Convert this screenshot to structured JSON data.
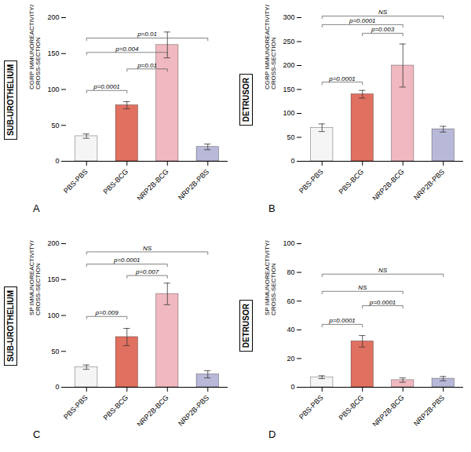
{
  "chart_data": [
    {
      "type": "bar",
      "title": "SUB-UROTHELIUM",
      "panel_label": "A",
      "ylabel": "CGRP IMMUNOREACTIVITY/\nCROSS-SECTION",
      "categories": [
        "PBS-PBS",
        "PBS-BCG",
        "NRP2B-BCG",
        "NRP2B-PBS"
      ],
      "values": [
        35,
        78,
        162,
        20
      ],
      "errors": [
        3,
        5,
        18,
        4
      ],
      "colors": [
        "#f5f5f5",
        "#e07060",
        "#f0b8c0",
        "#b8b8d8"
      ],
      "ylim": [
        0,
        200
      ],
      "yticks": [
        0,
        50,
        100,
        150,
        200
      ],
      "annotations": [
        {
          "x1": "PBS-PBS",
          "x2": "PBS-BCG",
          "y": 95,
          "text": "p=0.0001"
        },
        {
          "x1": "PBS-BCG",
          "x2": "NRP2B-BCG",
          "y": 125,
          "text": "p=0.01"
        },
        {
          "x1": "PBS-PBS",
          "x2": "NRP2B-BCG",
          "y": 148,
          "text": "p=0.004"
        },
        {
          "x1": "PBS-PBS",
          "x2": "NRP2B-PBS",
          "y": 168,
          "text": "p=0.01"
        }
      ]
    },
    {
      "type": "bar",
      "title": "DETRUSOR",
      "panel_label": "B",
      "ylabel": "CGRP IMMUNOREACTIVITY/\nCROSS-SECTION",
      "categories": [
        "PBS-PBS",
        "PBS-BCG",
        "NRP2B-BCG",
        "NRP2B-PBS"
      ],
      "values": [
        70,
        140,
        200,
        67
      ],
      "errors": [
        8,
        8,
        45,
        6
      ],
      "colors": [
        "#f5f5f5",
        "#e07060",
        "#f0b8c0",
        "#b8b8d8"
      ],
      "ylim": [
        0,
        300
      ],
      "yticks": [
        0,
        50,
        100,
        150,
        200,
        250,
        300
      ],
      "annotations": [
        {
          "x1": "PBS-PBS",
          "x2": "PBS-BCG",
          "y": 160,
          "text": "p=0.0001"
        },
        {
          "x1": "PBS-BCG",
          "x2": "NRP2B-BCG",
          "y": 262,
          "text": "p=0.003"
        },
        {
          "x1": "PBS-PBS",
          "x2": "NRP2B-BCG",
          "y": 280,
          "text": "p=0.0001"
        },
        {
          "x1": "PBS-PBS",
          "x2": "NRP2B-PBS",
          "y": 298,
          "text": "NS"
        }
      ]
    },
    {
      "type": "bar",
      "title": "SUB-UROTHELIUM",
      "panel_label": "C",
      "ylabel": "SP IMMUNOREACTIVITY/\nCROSS-SECTION",
      "categories": [
        "PBS-PBS",
        "PBS-BCG",
        "NRP2B-BCG",
        "NRP2B-PBS"
      ],
      "values": [
        28,
        70,
        130,
        18
      ],
      "errors": [
        3,
        12,
        15,
        5
      ],
      "colors": [
        "#f5f5f5",
        "#e07060",
        "#f0b8c0",
        "#b8b8d8"
      ],
      "ylim": [
        0,
        200
      ],
      "yticks": [
        0,
        50,
        100,
        150,
        200
      ],
      "annotations": [
        {
          "x1": "PBS-PBS",
          "x2": "PBS-BCG",
          "y": 95,
          "text": "p=0.009"
        },
        {
          "x1": "PBS-BCG",
          "x2": "NRP2B-BCG",
          "y": 152,
          "text": "p=0.007"
        },
        {
          "x1": "PBS-PBS",
          "x2": "NRP2B-BCG",
          "y": 168,
          "text": "p=0.0001"
        },
        {
          "x1": "PBS-PBS",
          "x2": "NRP2B-PBS",
          "y": 185,
          "text": "NS"
        }
      ]
    },
    {
      "type": "bar",
      "title": "DETRUSOR",
      "panel_label": "D",
      "ylabel": "SP IMMUNOREACTIVITY/\nCROSS-SECTION",
      "categories": [
        "PBS-PBS",
        "PBS-BCG",
        "NRP2B-BCG",
        "NRP2B-PBS"
      ],
      "values": [
        7,
        32,
        5,
        6
      ],
      "errors": [
        1,
        4,
        1.5,
        1.5
      ],
      "colors": [
        "#f5f5f5",
        "#e07060",
        "#f0b8c0",
        "#b8b8d8"
      ],
      "ylim": [
        0,
        100
      ],
      "yticks": [
        0,
        20,
        40,
        60,
        80,
        100
      ],
      "annotations": [
        {
          "x1": "PBS-PBS",
          "x2": "PBS-BCG",
          "y": 42,
          "text": "p=0.0001"
        },
        {
          "x1": "PBS-BCG",
          "x2": "NRP2B-BCG",
          "y": 55,
          "text": "p=0.0001"
        },
        {
          "x1": "PBS-PBS",
          "x2": "NRP2B-BCG",
          "y": 65,
          "text": "NS"
        },
        {
          "x1": "PBS-PBS",
          "x2": "NRP2B-PBS",
          "y": 77,
          "text": "NS"
        }
      ]
    }
  ]
}
